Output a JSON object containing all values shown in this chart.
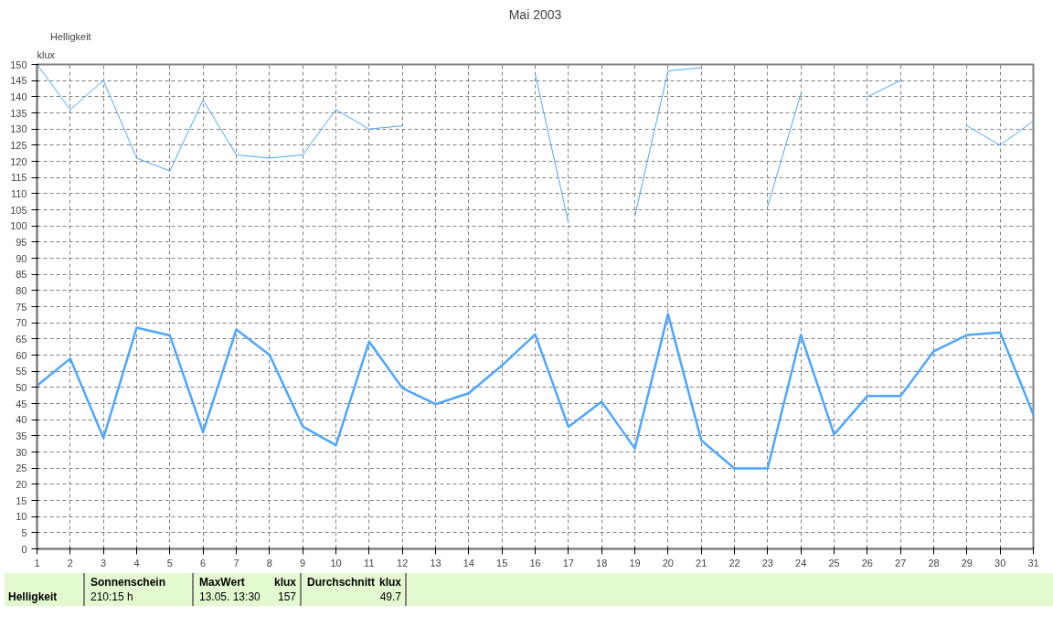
{
  "chart_data": {
    "type": "line",
    "title": "Mai 2003",
    "ylabel": "klux",
    "x": [
      1,
      2,
      3,
      4,
      5,
      6,
      7,
      8,
      9,
      10,
      11,
      12,
      13,
      14,
      15,
      16,
      17,
      18,
      19,
      20,
      21,
      22,
      23,
      24,
      25,
      26,
      27,
      28,
      29,
      30,
      31
    ],
    "series": [
      {
        "name": "Helligkeit",
        "color": "#4da6ff",
        "values": [
          150,
          136,
          145,
          121,
          117,
          139,
          122,
          121,
          122,
          136,
          130,
          131,
          null,
          null,
          null,
          147,
          101,
          null,
          103,
          148,
          149,
          null,
          106,
          141,
          null,
          140,
          145,
          null,
          131,
          125,
          132.5
        ]
      },
      {
        "color": "#4da6ff",
        "values": [
          50.5,
          58.9,
          34.3,
          68.5,
          66.1,
          36.1,
          67.9,
          60.1,
          37.9,
          32.1,
          64.2,
          49.8,
          44.8,
          48.2,
          56.8,
          66.4,
          37.8,
          45.6,
          31.1,
          72.7,
          33.6,
          24.9,
          24.9,
          66.3,
          35.4,
          47.3,
          47.3,
          61.2,
          66.2,
          67.0,
          41.6
        ]
      }
    ],
    "xlim": [
      1,
      31
    ],
    "xticks": [
      1,
      2,
      3,
      4,
      5,
      6,
      7,
      8,
      9,
      10,
      11,
      12,
      13,
      14,
      15,
      16,
      17,
      18,
      19,
      20,
      21,
      22,
      23,
      24,
      25,
      26,
      27,
      28,
      29,
      30,
      31
    ],
    "ylim": [
      0,
      150
    ],
    "yticks": [
      0,
      5,
      10,
      15,
      20,
      25,
      30,
      35,
      40,
      45,
      50,
      55,
      60,
      65,
      70,
      75,
      80,
      85,
      90,
      95,
      100,
      105,
      110,
      115,
      120,
      125,
      130,
      135,
      140,
      145,
      150
    ],
    "grid": true,
    "legend": "top left",
    "marker": "none",
    "line_style": "solid",
    "annotations": [
      "Helligkeit",
      "Sonnenschein",
      "210:15 h",
      "MaxWert",
      "klux",
      "13.05.  13:30",
      "157",
      "Durchschnitt",
      "klux",
      "49.7"
    ]
  }
}
